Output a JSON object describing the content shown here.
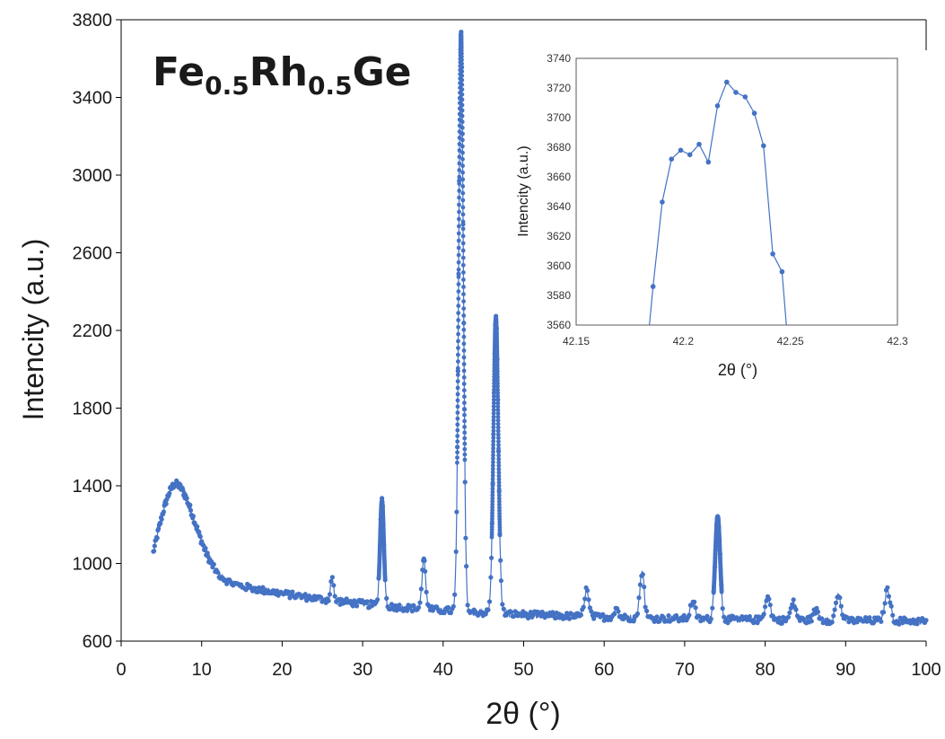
{
  "chart_data": [
    {
      "type": "scatter",
      "title": {
        "parts": [
          {
            "text": "Fe",
            "sub": false
          },
          {
            "text": "0.5",
            "sub": true
          },
          {
            "text": "Rh",
            "sub": false
          },
          {
            "text": "0.5",
            "sub": true
          },
          {
            "text": "Ge",
            "sub": false
          }
        ]
      },
      "xlabel": "2θ (°)",
      "ylabel": "Intencity (a.u.)",
      "xlim": [
        0,
        100
      ],
      "ylim": [
        600,
        3800
      ],
      "xticks": [
        0,
        10,
        20,
        30,
        40,
        50,
        60,
        70,
        80,
        90,
        100
      ],
      "yticks": [
        600,
        1000,
        1400,
        1800,
        2200,
        2600,
        3000,
        3400,
        3800
      ],
      "grid": false,
      "color": "#4472C4",
      "background": {
        "start": 4,
        "end": 100,
        "step": 0.08,
        "hump_center": 6.8,
        "hump_height": 1225,
        "base": 700
      },
      "peaks": [
        {
          "x": 26.2,
          "height": 120,
          "width": 0.22
        },
        {
          "x": 32.4,
          "height": 540,
          "width": 0.28
        },
        {
          "x": 37.6,
          "height": 250,
          "width": 0.28
        },
        {
          "x": 42.22,
          "height": 2975,
          "width": 0.34
        },
        {
          "x": 46.55,
          "height": 1520,
          "width": 0.36
        },
        {
          "x": 57.8,
          "height": 140,
          "width": 0.32
        },
        {
          "x": 61.5,
          "height": 50,
          "width": 0.3
        },
        {
          "x": 64.7,
          "height": 240,
          "width": 0.32
        },
        {
          "x": 71.0,
          "height": 90,
          "width": 0.35
        },
        {
          "x": 74.1,
          "height": 530,
          "width": 0.36
        },
        {
          "x": 80.3,
          "height": 120,
          "width": 0.38
        },
        {
          "x": 83.5,
          "height": 90,
          "width": 0.38
        },
        {
          "x": 86.3,
          "height": 50,
          "width": 0.38
        },
        {
          "x": 89.1,
          "height": 130,
          "width": 0.38
        },
        {
          "x": 95.2,
          "height": 160,
          "width": 0.4
        }
      ]
    },
    {
      "type": "line",
      "inset": true,
      "title": "",
      "xlabel": "2θ (°)",
      "ylabel": "Intencity (a.u.)",
      "xlim": [
        42.15,
        42.3
      ],
      "ylim": [
        3560,
        3740
      ],
      "xticks": [
        42.15,
        42.2,
        42.25,
        42.3
      ],
      "xticklabels": [
        "42.15",
        "42.2",
        "42.25",
        "42.3"
      ],
      "yticks": [
        3560,
        3580,
        3600,
        3620,
        3640,
        3660,
        3680,
        3700,
        3720,
        3740
      ],
      "grid": false,
      "color": "#4472C4",
      "points": [
        {
          "x": 42.1816,
          "y": 3520
        },
        {
          "x": 42.1859,
          "y": 3586
        },
        {
          "x": 42.1902,
          "y": 3643
        },
        {
          "x": 42.1945,
          "y": 3672
        },
        {
          "x": 42.1988,
          "y": 3678
        },
        {
          "x": 42.2031,
          "y": 3675
        },
        {
          "x": 42.2074,
          "y": 3682
        },
        {
          "x": 42.2117,
          "y": 3670
        },
        {
          "x": 42.216,
          "y": 3708
        },
        {
          "x": 42.2203,
          "y": 3724
        },
        {
          "x": 42.2246,
          "y": 3717
        },
        {
          "x": 42.2289,
          "y": 3714
        },
        {
          "x": 42.2332,
          "y": 3703
        },
        {
          "x": 42.2375,
          "y": 3681
        },
        {
          "x": 42.2418,
          "y": 3608
        },
        {
          "x": 42.2461,
          "y": 3596
        },
        {
          "x": 42.2504,
          "y": 3520
        }
      ]
    }
  ]
}
